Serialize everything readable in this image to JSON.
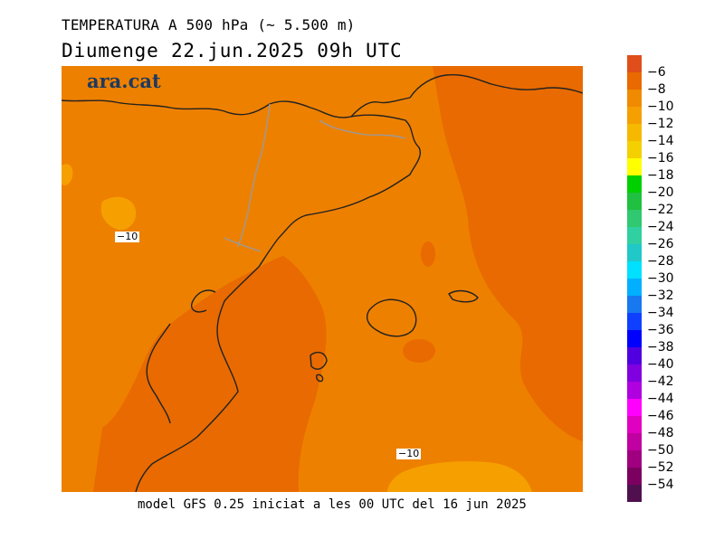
{
  "header": {
    "title": "TEMPERATURA A 500 hPa (~ 5.500 m)",
    "date": "Diumenge  22.jun.2025 09h UTC"
  },
  "logo": {
    "text": "ara.cat"
  },
  "footer": {
    "text": "model GFS 0.25 iniciat a les 00 UTC del 16 jun 2025"
  },
  "map": {
    "contour_labels": [
      "−10",
      "−10"
    ],
    "fill_colors": {
      "warm": "#e86a00",
      "mid": "#ee8000",
      "cool": "#f5a000"
    },
    "coast_color": "#222222",
    "border_color": "#9a9a9a"
  },
  "legend": {
    "colors": [
      "#e04e1a",
      "#e86a00",
      "#f08a00",
      "#f5a000",
      "#f7b800",
      "#f5d000",
      "#ffff00",
      "#00d000",
      "#20c040",
      "#30c870",
      "#30d0a0",
      "#20c8c8",
      "#00e0ff",
      "#00b0ff",
      "#1878f0",
      "#1040ff",
      "#0000ff",
      "#5000e0",
      "#8000e0",
      "#b000e0",
      "#ff00ff",
      "#e000c0",
      "#c000a0",
      "#a00080",
      "#7c0060",
      "#501050"
    ],
    "labels": [
      "−6",
      "−8",
      "−10",
      "−12",
      "−14",
      "−16",
      "−18",
      "−20",
      "−22",
      "−24",
      "−26",
      "−28",
      "−30",
      "−32",
      "−34",
      "−36",
      "−38",
      "−40",
      "−42",
      "−44",
      "−46",
      "−48",
      "−50",
      "−52",
      "−54"
    ]
  }
}
